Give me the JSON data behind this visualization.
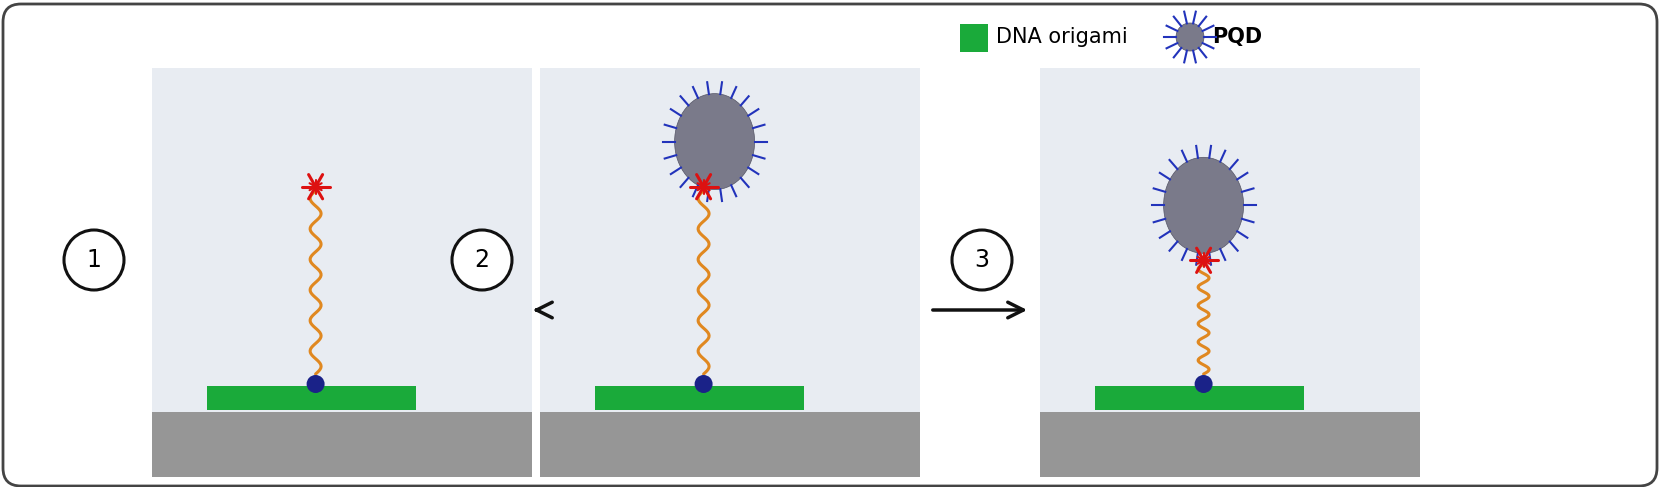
{
  "bg_color": "#ffffff",
  "panel_bg": "#e8ecf2",
  "surface_color": "#969696",
  "dna_origami_color": "#1aaa3a",
  "pqd_fill": "#7a7a8a",
  "pqd_spike_color": "#2233bb",
  "linker_color": "#e08820",
  "star_color": "#dd1111",
  "dot_color": "#1a2288",
  "arrow_color": "#111111",
  "circle_color": "#111111",
  "legend_green": "#1aaa3a",
  "fig_width": 16.6,
  "fig_height": 4.87
}
